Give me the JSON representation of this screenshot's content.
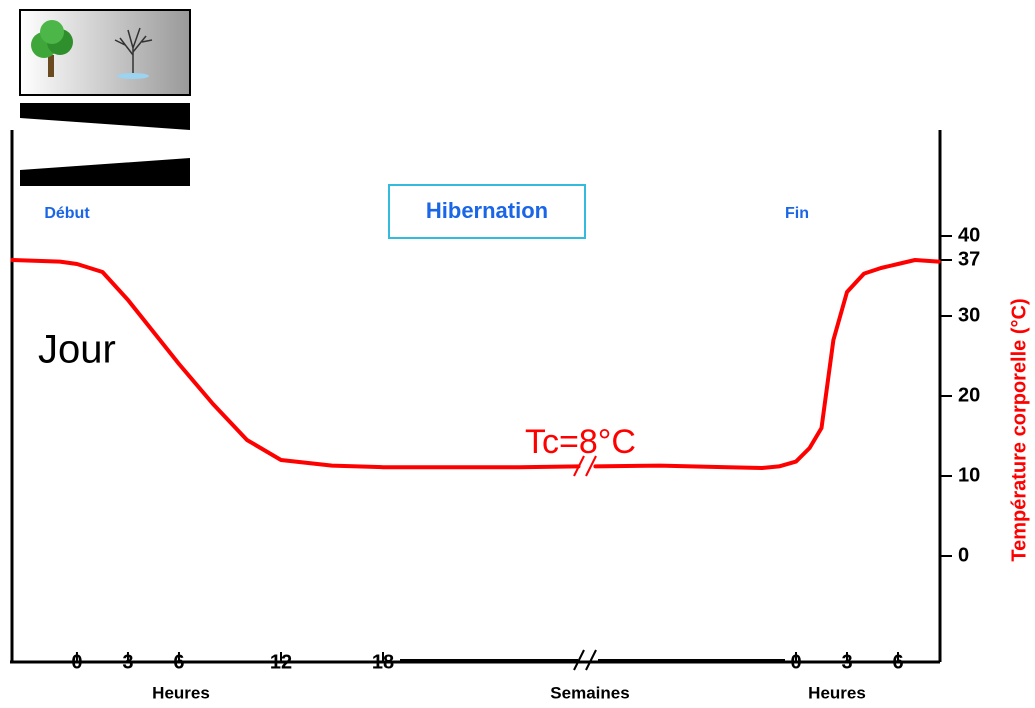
{
  "chart_data": {
    "type": "line",
    "labels": {
      "start": "Début",
      "phase": "Hibernation",
      "end": "Fin",
      "day": "Jour",
      "annotation": "Tc=8°C"
    },
    "ylabel": "Température corporelle (°C)",
    "ylim": [
      -13.25,
      53.25
    ],
    "yticks": [
      0,
      10,
      20,
      30,
      37,
      40
    ],
    "color": "#ff0000",
    "middle_label": "Semaines",
    "segments": [
      {
        "xlabel": "Heures",
        "xlim": [
          -3.82,
          29.88
        ],
        "xticks": [
          0,
          3,
          6,
          12,
          18
        ],
        "x": [
          -3.8,
          -1,
          0,
          1.5,
          3,
          4.5,
          6,
          8,
          10,
          12,
          15,
          18,
          22,
          26,
          29.5
        ],
        "values": [
          37,
          36.8,
          36.5,
          35.5,
          32,
          28,
          24,
          19,
          14.5,
          12,
          11.3,
          11.1,
          11.1,
          11.1,
          11.2
        ]
      },
      {
        "xlabel": "Heures",
        "xlim": [
          -12,
          8.47
        ],
        "xticks": [
          0,
          3,
          6
        ],
        "x": [
          -11.8,
          -8,
          -4,
          -2,
          -1,
          0,
          0.8,
          1.5,
          2.2,
          3,
          4,
          5,
          6,
          7,
          8.4
        ],
        "values": [
          11.2,
          11.3,
          11.1,
          11,
          11.2,
          11.8,
          13.5,
          16,
          27,
          33,
          35.3,
          36,
          36.5,
          37,
          36.8
        ]
      }
    ]
  }
}
